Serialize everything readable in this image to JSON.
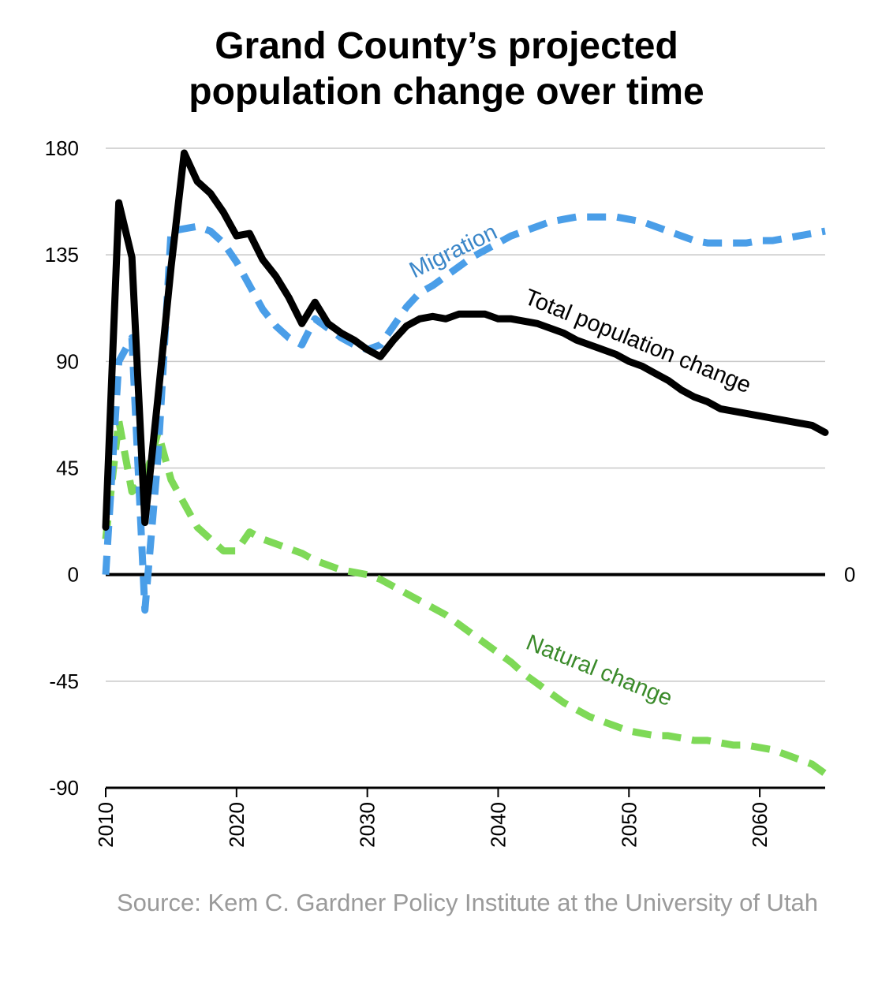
{
  "title_line1": "Grand County’s projected",
  "title_line2": "population change over time",
  "source": "Source: Kem C. Gardner Policy Institute at the University of Utah",
  "chart_data": {
    "type": "line",
    "xlim": [
      2010,
      2065
    ],
    "ylim": [
      -90,
      180
    ],
    "xticks": [
      2010,
      2020,
      2030,
      2040,
      2050,
      2060
    ],
    "yticks": [
      180,
      135,
      90,
      45,
      0,
      -45,
      -90
    ],
    "grid": true,
    "zero_label": "0",
    "series": [
      {
        "name": "Total population change",
        "color": "#000000",
        "style": "solid",
        "x": [
          2010,
          2011,
          2012,
          2013,
          2014,
          2015,
          2016,
          2017,
          2018,
          2019,
          2020,
          2021,
          2022,
          2023,
          2024,
          2025,
          2026,
          2027,
          2028,
          2029,
          2030,
          2031,
          2032,
          2033,
          2034,
          2035,
          2036,
          2037,
          2038,
          2039,
          2040,
          2041,
          2042,
          2043,
          2044,
          2045,
          2046,
          2047,
          2048,
          2049,
          2050,
          2051,
          2052,
          2053,
          2054,
          2055,
          2056,
          2057,
          2058,
          2059,
          2060,
          2061,
          2062,
          2063,
          2064,
          2065
        ],
        "values": [
          20,
          157,
          134,
          22,
          75,
          130,
          178,
          166,
          161,
          153,
          143,
          144,
          133,
          126,
          117,
          106,
          115,
          106,
          102,
          99,
          95,
          92,
          99,
          105,
          108,
          109,
          108,
          110,
          110,
          110,
          108,
          108,
          107,
          106,
          104,
          102,
          99,
          97,
          95,
          93,
          90,
          88,
          85,
          82,
          78,
          75,
          73,
          70,
          69,
          68,
          67,
          66,
          65,
          64,
          63,
          60
        ]
      },
      {
        "name": "Migration",
        "color": "#4a9ee8",
        "style": "dashed",
        "x": [
          2010,
          2011,
          2012,
          2013,
          2014,
          2015,
          2016,
          2017,
          2018,
          2019,
          2020,
          2021,
          2022,
          2023,
          2024,
          2025,
          2026,
          2027,
          2028,
          2029,
          2030,
          2031,
          2032,
          2033,
          2034,
          2035,
          2036,
          2037,
          2038,
          2039,
          2040,
          2041,
          2042,
          2043,
          2044,
          2045,
          2046,
          2047,
          2048,
          2049,
          2050,
          2051,
          2052,
          2053,
          2054,
          2055,
          2056,
          2057,
          2058,
          2059,
          2060,
          2061,
          2062,
          2063,
          2064,
          2065
        ],
        "values": [
          0,
          90,
          100,
          -15,
          50,
          145,
          146,
          147,
          145,
          140,
          132,
          122,
          112,
          105,
          100,
          97,
          108,
          104,
          100,
          97,
          95,
          97,
          105,
          113,
          119,
          122,
          126,
          130,
          134,
          137,
          140,
          143,
          145,
          147,
          149,
          150,
          151,
          151,
          151,
          151,
          150,
          149,
          147,
          145,
          143,
          141,
          140,
          140,
          140,
          140,
          141,
          141,
          142,
          143,
          144,
          145
        ]
      },
      {
        "name": "Natural change",
        "color": "#7ed957",
        "style": "dashed",
        "x": [
          2010,
          2011,
          2012,
          2013,
          2014,
          2015,
          2016,
          2017,
          2018,
          2019,
          2020,
          2021,
          2022,
          2023,
          2024,
          2025,
          2026,
          2027,
          2028,
          2029,
          2030,
          2031,
          2032,
          2033,
          2034,
          2035,
          2036,
          2037,
          2038,
          2039,
          2040,
          2041,
          2042,
          2043,
          2044,
          2045,
          2046,
          2047,
          2048,
          2049,
          2050,
          2051,
          2052,
          2053,
          2054,
          2055,
          2056,
          2057,
          2058,
          2059,
          2060,
          2061,
          2062,
          2063,
          2064,
          2065
        ],
        "values": [
          15,
          65,
          35,
          40,
          60,
          40,
          30,
          20,
          15,
          10,
          10,
          18,
          15,
          13,
          11,
          9,
          6,
          4,
          2,
          1,
          0,
          -2,
          -5,
          -8,
          -11,
          -14,
          -17,
          -21,
          -25,
          -29,
          -33,
          -37,
          -42,
          -46,
          -50,
          -54,
          -57,
          -60,
          -62,
          -64,
          -66,
          -67,
          -68,
          -68,
          -69,
          -70,
          -70,
          -71,
          -72,
          -72,
          -73,
          -74,
          -76,
          -78,
          -80,
          -84
        ]
      }
    ]
  }
}
